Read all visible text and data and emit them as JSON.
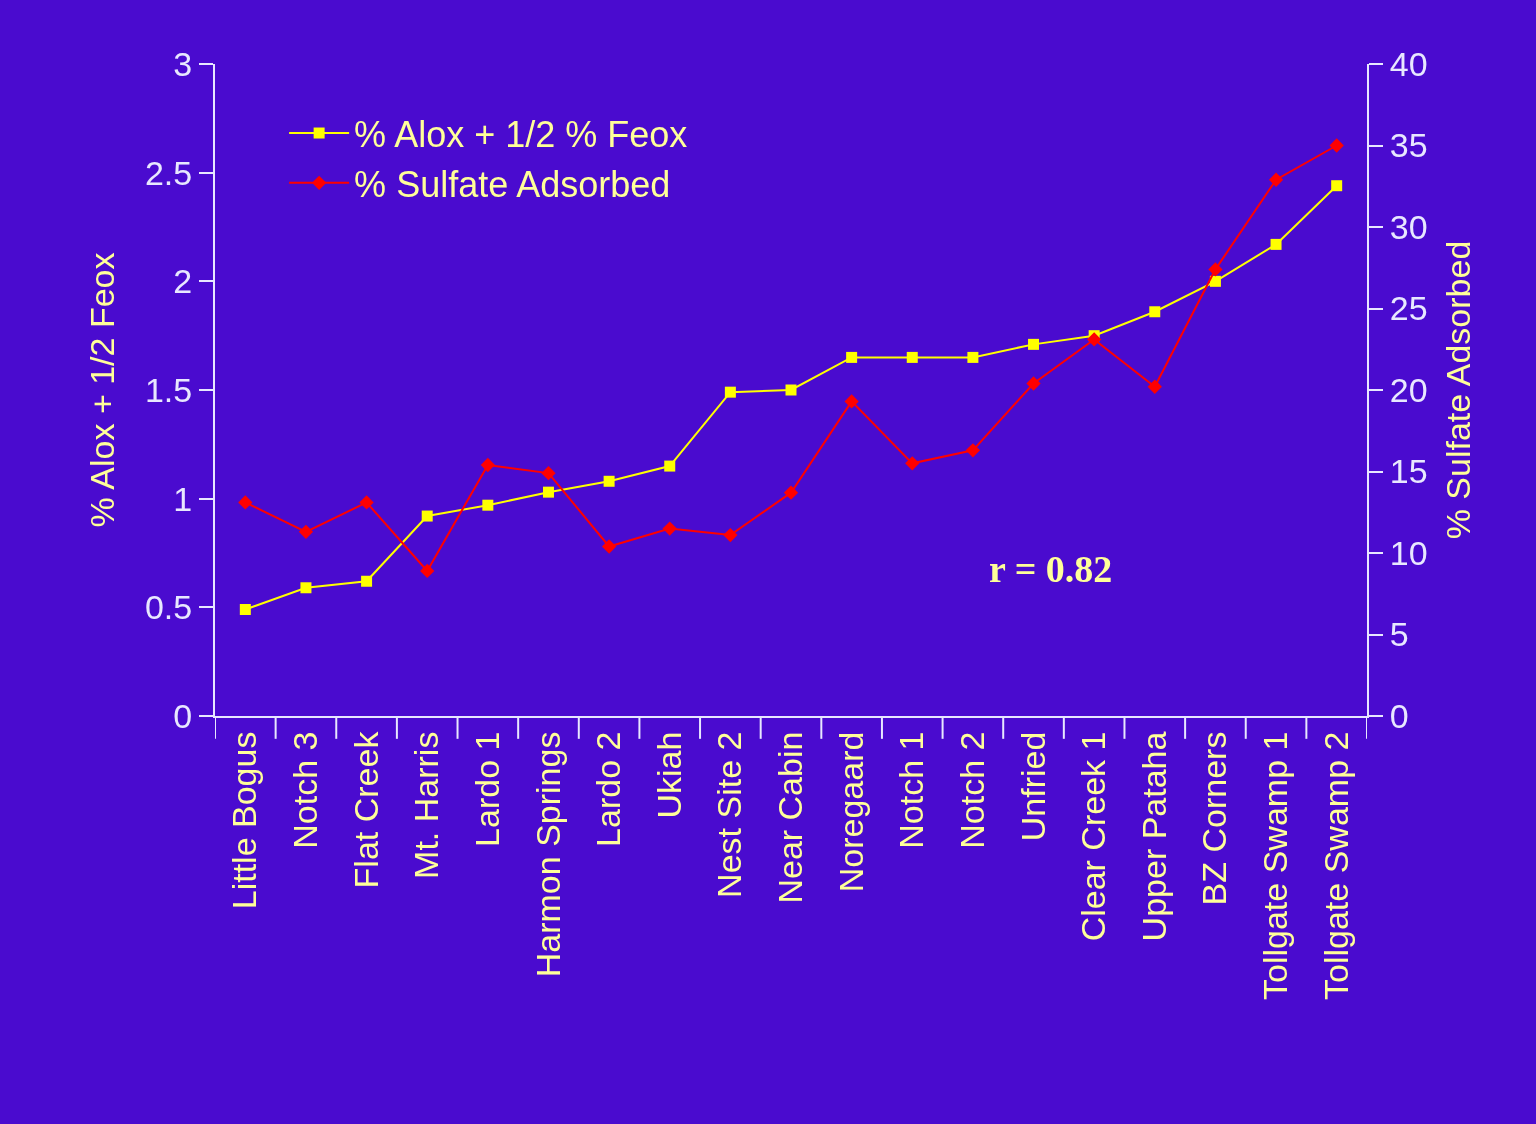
{
  "chart_data": {
    "type": "line",
    "ylabel": "% Alox + 1/2 Feox",
    "y2label": "% Sulfate Adsorbed",
    "categories": [
      "Little Bogus",
      "Notch 3",
      "Flat Creek",
      "Mt. Harris",
      "Lardo 1",
      "Harmon Springs",
      "Lardo 2",
      "Ukiah",
      "Nest Site 2",
      "Near Cabin",
      "Noregaard",
      "Notch 1",
      "Notch 2",
      "Unfried",
      "Clear Creek 1",
      "Upper Pataha",
      "BZ Corners",
      "Tollgate Swamp 1",
      "Tollgate Swamp 2"
    ],
    "series": [
      {
        "name": "% Alox + 1/2 % Feox",
        "color": "#ffff00",
        "marker": "square",
        "values": [
          0.49,
          0.59,
          0.62,
          0.92,
          0.97,
          1.03,
          1.08,
          1.15,
          1.49,
          1.5,
          1.65,
          1.65,
          1.65,
          1.71,
          1.75,
          1.86,
          2.0,
          2.17,
          2.44
        ]
      },
      {
        "name": "% Sulfate Adsorbed",
        "color": "#ff0000",
        "marker": "diamond",
        "axis": "y2",
        "values": [
          13.1,
          11.3,
          13.1,
          8.9,
          15.4,
          14.9,
          10.4,
          11.5,
          11.1,
          13.7,
          19.3,
          15.5,
          16.3,
          20.4,
          23.1,
          20.2,
          27.4,
          32.9,
          35.0
        ]
      }
    ],
    "ylim": [
      0,
      3
    ],
    "yticks": [
      0,
      0.5,
      1,
      1.5,
      2,
      2.5,
      3
    ],
    "y2lim": [
      0,
      40
    ],
    "y2ticks": [
      0,
      5,
      10,
      15,
      20,
      25,
      30,
      35,
      40
    ],
    "annotations": [
      "r = 0.82"
    ],
    "legend": "top left",
    "grid": false
  }
}
